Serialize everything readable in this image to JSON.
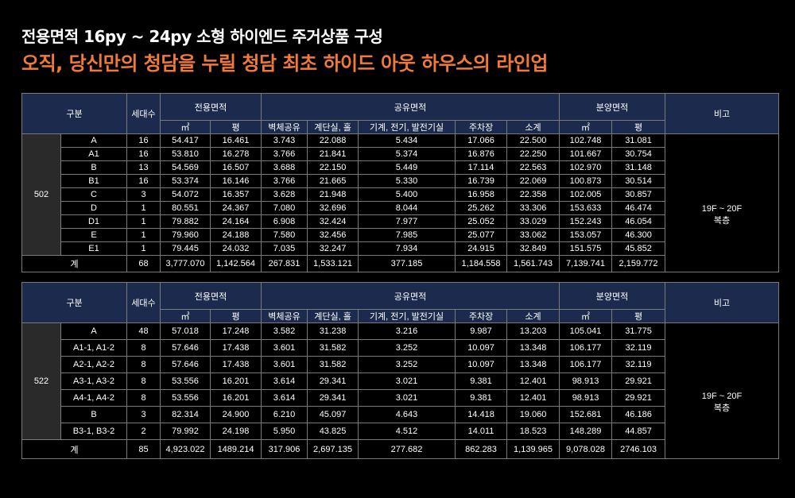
{
  "header": {
    "title": "전용면적 16py ~ 24py 소형 하이엔드 주거상품 구성",
    "subtitle": "오직, 당신만의 청담을 누릴 청담 최초 하이드 아웃 하우스의 라인업"
  },
  "columns": {
    "category": "구분",
    "households": "세대수",
    "exclusive": "전용면적",
    "common": "공유면적",
    "sale": "분양면적",
    "note": "비고",
    "sqm": "㎡",
    "pyeong": "평",
    "wall": "벽체공유",
    "stair": "계단실, 홀",
    "mech": "기계, 전기, 발전기실",
    "parking": "주차장",
    "subtotal": "소계"
  },
  "table_502": {
    "group": "502",
    "note": "19F ~ 20F\n복층",
    "rows": [
      [
        "A",
        "16",
        "54.417",
        "16.461",
        "3.743",
        "22.088",
        "5.434",
        "17.066",
        "22.500",
        "102.748",
        "31.081"
      ],
      [
        "A1",
        "16",
        "53.810",
        "16.278",
        "3.766",
        "21.841",
        "5.374",
        "16.876",
        "22.250",
        "101.667",
        "30.754"
      ],
      [
        "B",
        "13",
        "54.569",
        "16.507",
        "3.688",
        "22.150",
        "5.449",
        "17.114",
        "22.563",
        "102.970",
        "31.148"
      ],
      [
        "B1",
        "16",
        "53.374",
        "16.146",
        "3.766",
        "21.665",
        "5.330",
        "16.739",
        "22.069",
        "100.873",
        "30.514"
      ],
      [
        "C",
        "3",
        "54.072",
        "16.357",
        "3.628",
        "21.948",
        "5.400",
        "16.958",
        "22.358",
        "102.005",
        "30.857"
      ],
      [
        "D",
        "1",
        "80.551",
        "24.367",
        "7.080",
        "32.696",
        "8.044",
        "25.262",
        "33.306",
        "153.633",
        "46.474"
      ],
      [
        "D1",
        "1",
        "79.882",
        "24.164",
        "6.908",
        "32.424",
        "7.977",
        "25.052",
        "33.029",
        "152.243",
        "46.054"
      ],
      [
        "E",
        "1",
        "79.960",
        "24.188",
        "7.580",
        "32.456",
        "7.985",
        "25.077",
        "33.062",
        "153.057",
        "46.300"
      ],
      [
        "E1",
        "1",
        "79.445",
        "24.032",
        "7.035",
        "32.247",
        "7.934",
        "24.915",
        "32.849",
        "151.575",
        "45.852"
      ]
    ],
    "total": [
      "계",
      "68",
      "3,777.070",
      "1,142.564",
      "267.831",
      "1,533.121",
      "377.185",
      "1,184.558",
      "1,561.743",
      "7,139.741",
      "2,159.772"
    ]
  },
  "table_522": {
    "group": "522",
    "note": "19F ~ 20F\n복층",
    "rows": [
      [
        "A",
        "48",
        "57.018",
        "17.248",
        "3.582",
        "31.238",
        "3.216",
        "9.987",
        "13.203",
        "105.041",
        "31.775"
      ],
      [
        "A1-1, A1-2",
        "8",
        "57.646",
        "17.438",
        "3.601",
        "31.582",
        "3.252",
        "10.097",
        "13.348",
        "106.177",
        "32.119"
      ],
      [
        "A2-1, A2-2",
        "8",
        "57.646",
        "17.438",
        "3.601",
        "31.582",
        "3.252",
        "10.097",
        "13.348",
        "106.177",
        "32.119"
      ],
      [
        "A3-1, A3-2",
        "8",
        "53.556",
        "16.201",
        "3.614",
        "29.341",
        "3.021",
        "9.381",
        "12.401",
        "98.913",
        "29.921"
      ],
      [
        "A4-1, A4-2",
        "8",
        "53.556",
        "16.201",
        "3.614",
        "29.341",
        "3.021",
        "9.381",
        "12.401",
        "98.913",
        "29.921"
      ],
      [
        "B",
        "3",
        "82.314",
        "24.900",
        "6.210",
        "45.097",
        "4.643",
        "14.418",
        "19.060",
        "152.681",
        "46.186"
      ],
      [
        "B3-1, B3-2",
        "2",
        "79.992",
        "24.198",
        "5.950",
        "43.825",
        "4.512",
        "14.011",
        "18.523",
        "148.289",
        "44.857"
      ]
    ],
    "total": [
      "계",
      "85",
      "4,923.022",
      "1489.214",
      "317.906",
      "2,697.135",
      "277.682",
      "862.283",
      "1,139.965",
      "9,078.028",
      "2746.103"
    ]
  },
  "colors": {
    "header_bg": "#1c2b4d",
    "group_bg": "#2a2a2a",
    "accent": "#f07a3a",
    "border": "#7a7a7a"
  }
}
